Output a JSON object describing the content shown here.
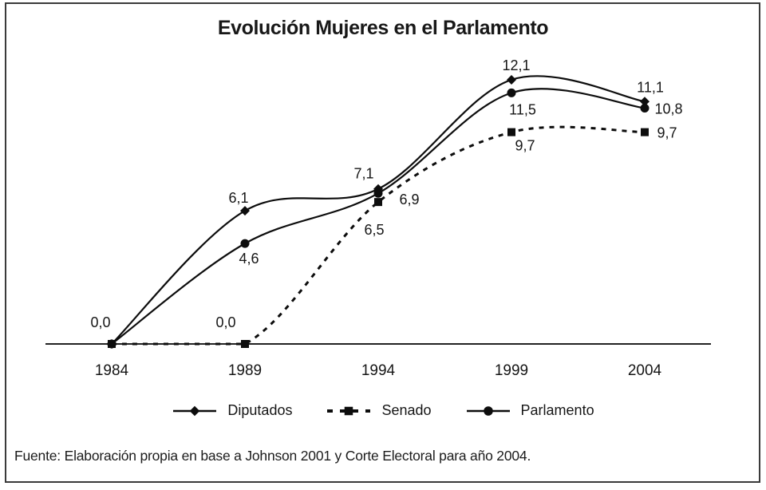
{
  "title": "Evolución Mujeres en el Parlamento",
  "source": "Fuente: Elaboración propia en base a Johnson 2001 y Corte Electoral para año 2004.",
  "colors": {
    "line": "#0d0d0d",
    "text": "#161616",
    "axis": "#222222",
    "background": "#ffffff",
    "frame": "#3a3a3a"
  },
  "legend": {
    "items": [
      {
        "label": "Diputados",
        "marker": "diamond",
        "line": "solid"
      },
      {
        "label": "Senado",
        "marker": "square",
        "line": "dashed"
      },
      {
        "label": "Parlamento",
        "marker": "circle",
        "line": "solid"
      }
    ]
  },
  "chart_data": {
    "type": "line",
    "title": "Evolución Mujeres en el Parlamento",
    "x": [
      "1984",
      "1989",
      "1994",
      "1999",
      "2004"
    ],
    "series": [
      {
        "name": "Diputados",
        "marker": "diamond",
        "line": "solid",
        "values": [
          0,
          6.1,
          7.1,
          12.1,
          11.1
        ],
        "labels": [
          "0,0",
          "6,1",
          "7,1",
          "12,1",
          "11,1"
        ]
      },
      {
        "name": "Senado",
        "marker": "square",
        "line": "dashed",
        "values": [
          0,
          0,
          6.5,
          9.7,
          9.7
        ],
        "labels": [
          null,
          "0,0",
          "6,5",
          "9,7",
          "9,7"
        ]
      },
      {
        "name": "Parlamento",
        "marker": "circle",
        "line": "solid",
        "values": [
          0,
          4.6,
          6.9,
          11.5,
          10.8
        ],
        "labels": [
          null,
          "4,6",
          "6,9",
          "11,5",
          "10,8"
        ]
      }
    ],
    "xlabel": "",
    "ylabel": "",
    "ylim": [
      0,
      13
    ],
    "grid": false,
    "y_axis_visible": false,
    "legend_position": "bottom"
  }
}
